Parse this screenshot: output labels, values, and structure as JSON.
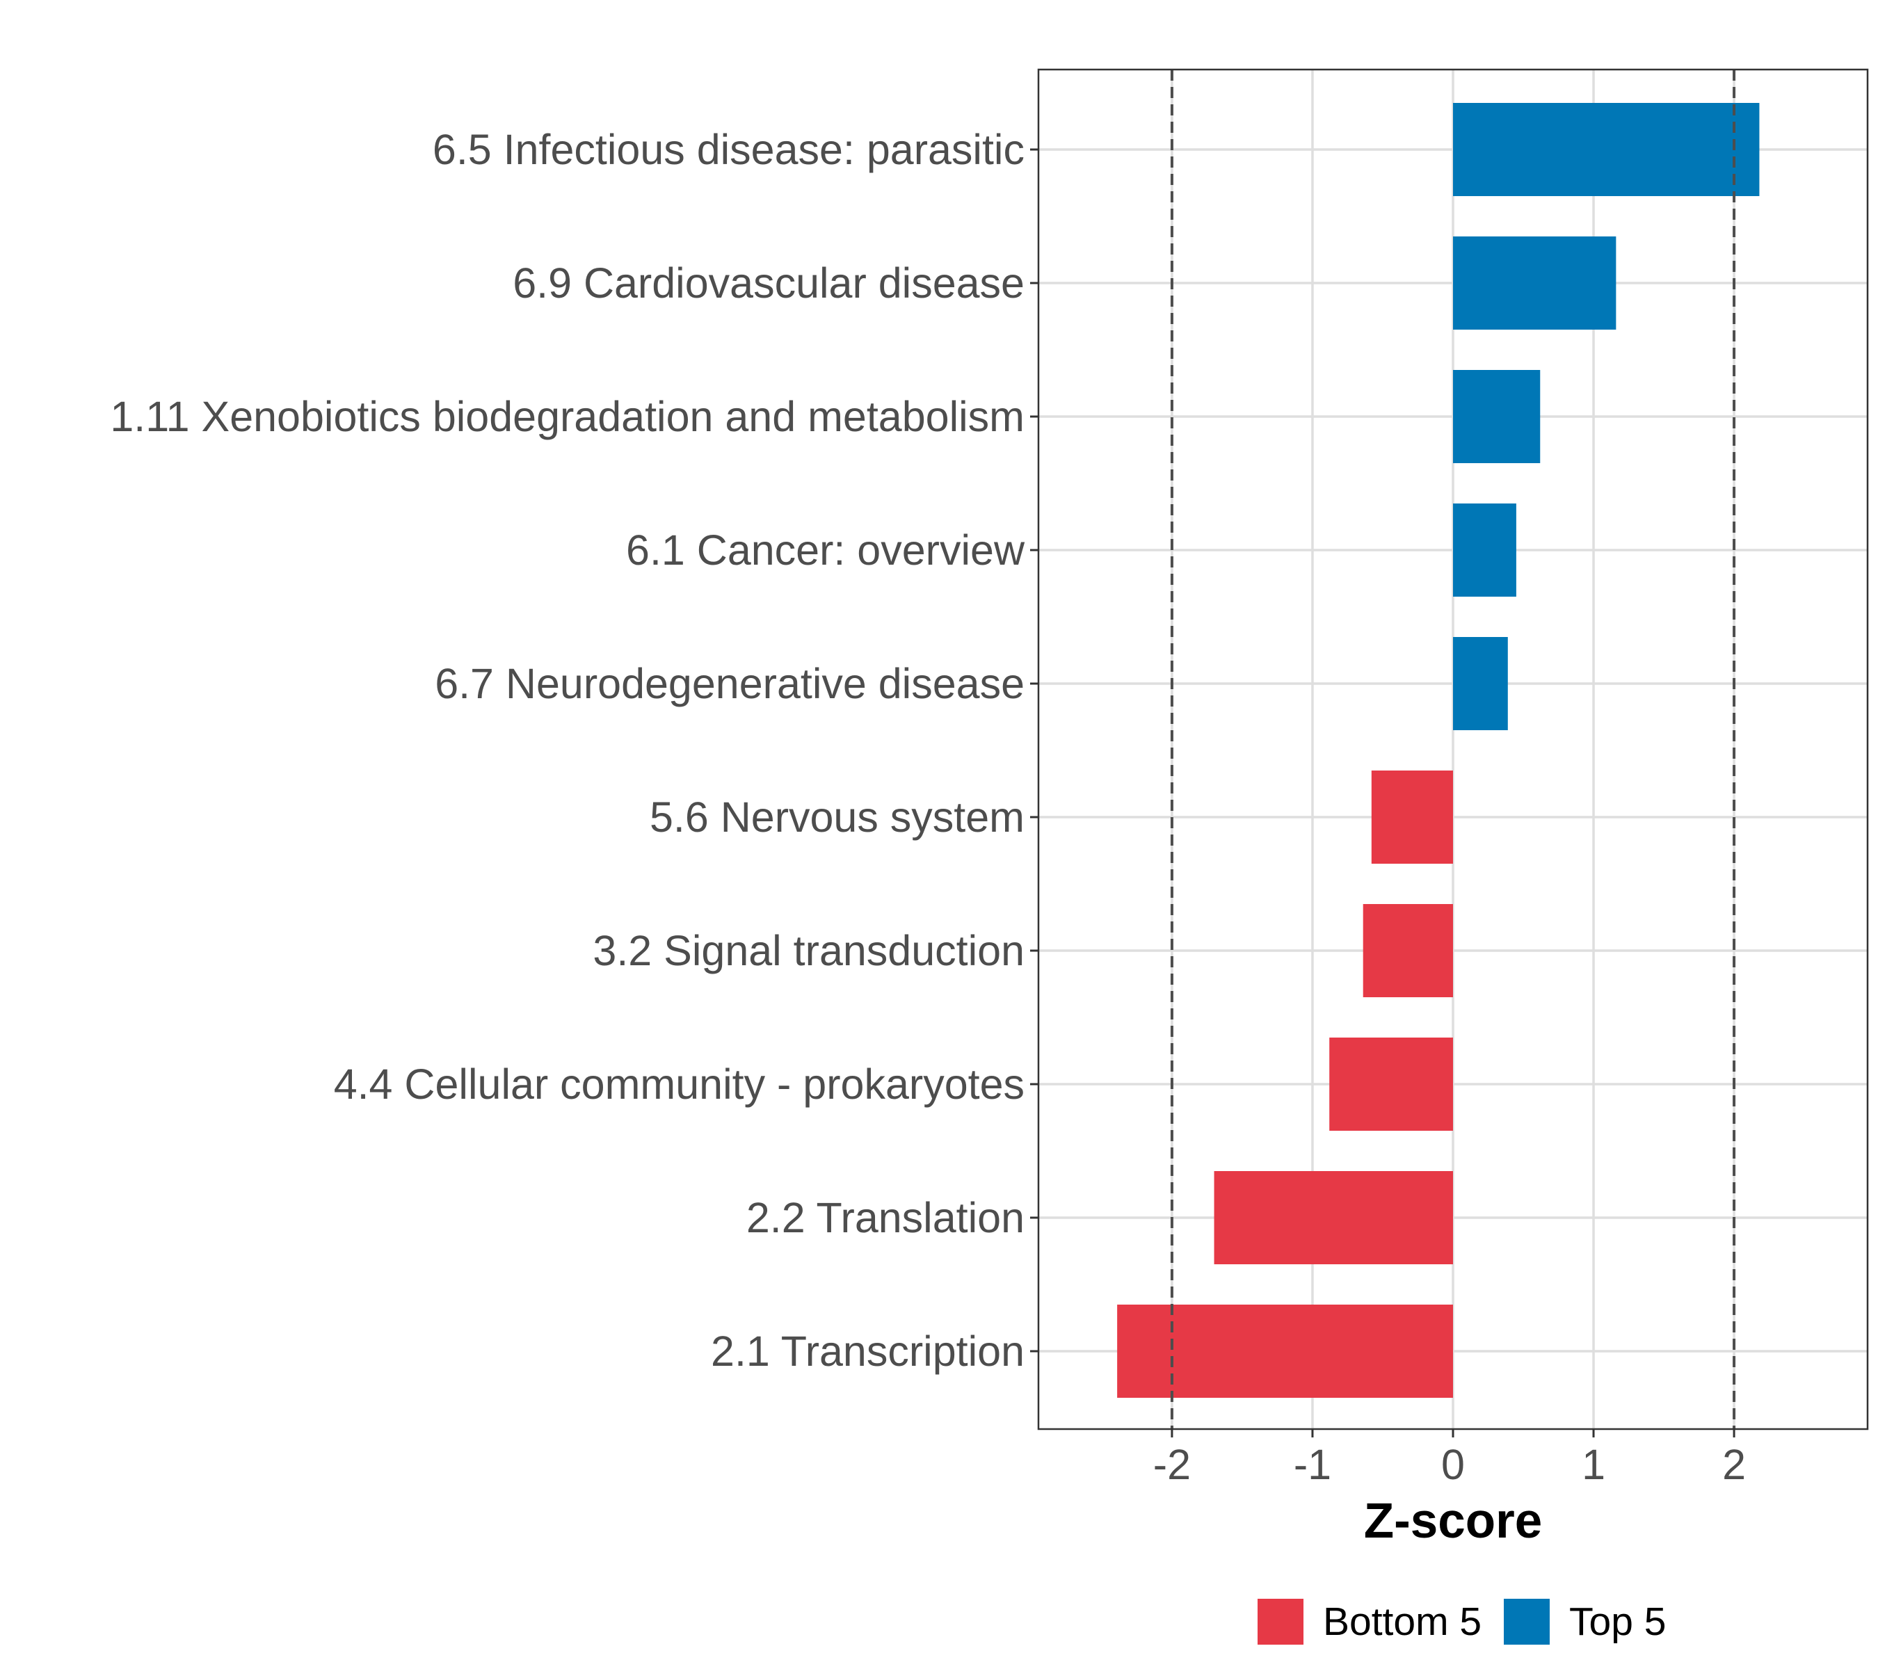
{
  "chart_data": {
    "type": "bar",
    "orientation": "horizontal",
    "categories": [
      "6.5 Infectious disease: parasitic",
      "6.9 Cardiovascular disease",
      "1.11 Xenobiotics biodegradation and metabolism",
      "6.1 Cancer: overview",
      "6.7 Neurodegenerative disease",
      "5.6 Nervous system",
      "3.2 Signal transduction",
      "4.4 Cellular community - prokaryotes",
      "2.2 Translation",
      "2.1 Transcription"
    ],
    "values": [
      2.18,
      1.16,
      0.62,
      0.45,
      0.39,
      -0.58,
      -0.64,
      -0.88,
      -1.7,
      -2.39
    ],
    "groups": [
      "Top 5",
      "Top 5",
      "Top 5",
      "Top 5",
      "Top 5",
      "Bottom 5",
      "Bottom 5",
      "Bottom 5",
      "Bottom 5",
      "Bottom 5"
    ],
    "xlabel": "Z-score",
    "ylabel": "",
    "xlim": [
      -2.95,
      2.95
    ],
    "xticks": [
      -2,
      -1,
      0,
      1,
      2
    ],
    "xtick_labels": [
      "-2",
      "-1",
      "0",
      "1",
      "2"
    ],
    "reference_lines": [
      -2,
      2
    ],
    "grid": true,
    "legend": {
      "position": "bottom",
      "entries": [
        {
          "label": "Bottom 5",
          "color": "#E63946"
        },
        {
          "label": "Top 5",
          "color": "#0077B6"
        }
      ]
    },
    "colors": {
      "Top 5": "#0077B6",
      "Bottom 5": "#E63946"
    }
  }
}
